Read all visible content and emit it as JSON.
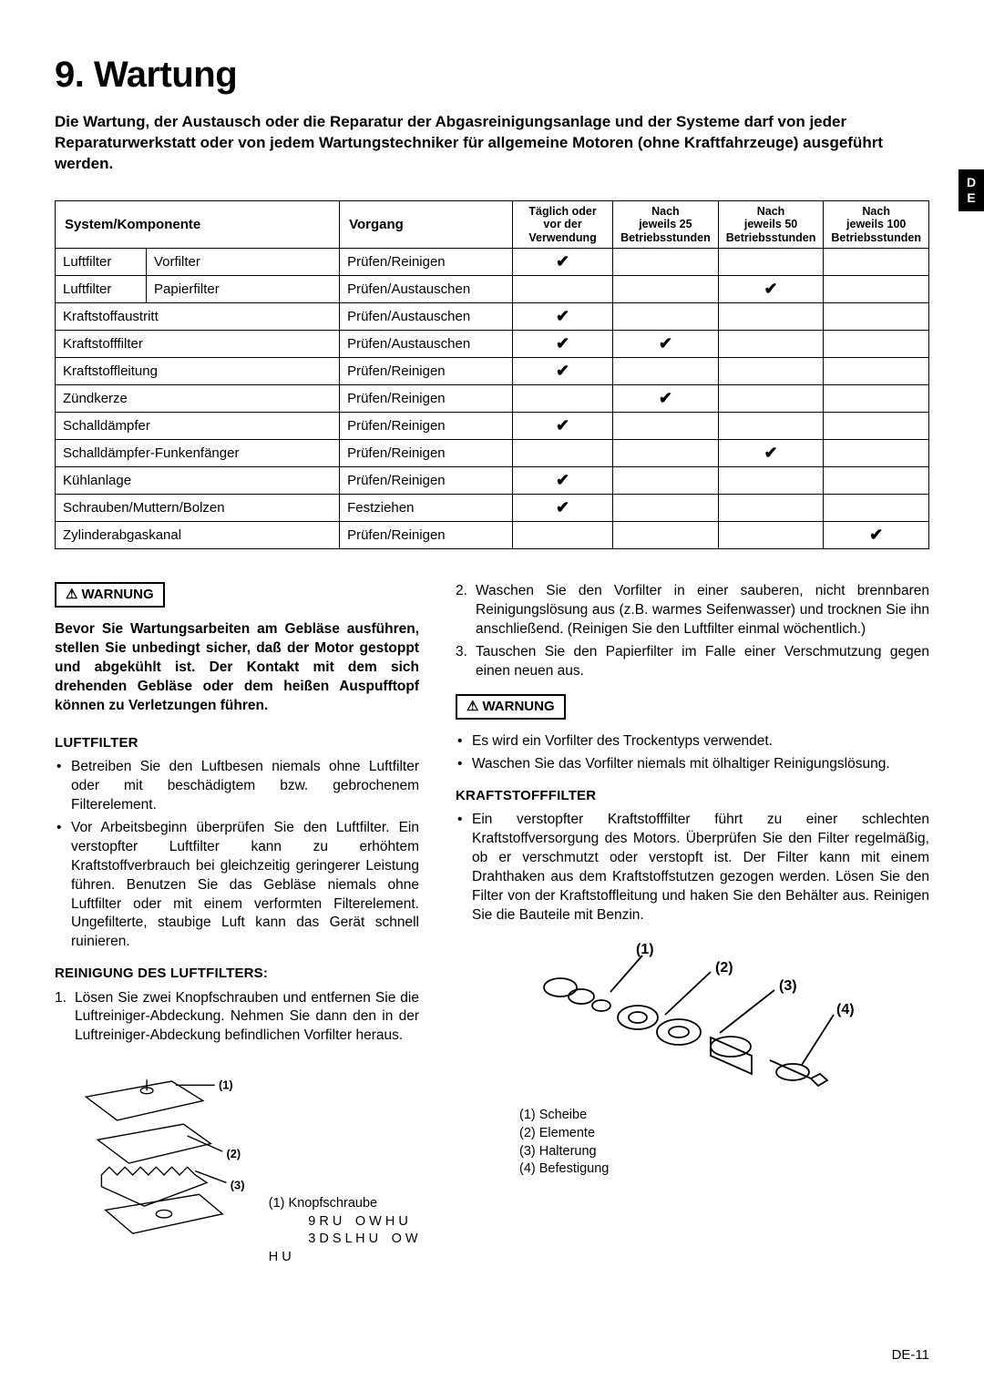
{
  "sideTab": {
    "line1": "D",
    "line2": "E"
  },
  "title": "9. Wartung",
  "intro": "Die Wartung, der Austausch oder die Reparatur der Abgasreinigungsanlage und der Systeme darf von jeder Reparaturwerkstatt oder von jedem Wartungstechniker für allgemeine Motoren (ohne Kraftfahrzeuge) ausgeführt werden.",
  "table": {
    "headers": {
      "syscomp": "System/Komponente",
      "vorgang": "Vorgang",
      "c1a": "Täglich oder",
      "c1b": "vor der",
      "c1c": "Verwendung",
      "c2a": "Nach",
      "c2b": "jeweils 25",
      "c2c": "Betriebsstunden",
      "c3a": "Nach",
      "c3b": "jeweils 50",
      "c3c": "Betriebsstunden",
      "c4a": "Nach",
      "c4b": "jeweils 100",
      "c4c": "Betriebsstunden"
    },
    "rows": [
      {
        "sys": "Luftfilter",
        "comp": "Vorfilter",
        "op": "Prüfen/Reinigen",
        "c": [
          true,
          false,
          false,
          false
        ]
      },
      {
        "sys": "Luftfilter",
        "comp": "Papierfilter",
        "op": "Prüfen/Austauschen",
        "c": [
          false,
          false,
          true,
          false
        ]
      },
      {
        "sys": "Kraftstoffaustritt",
        "comp": "",
        "op": "Prüfen/Austauschen",
        "c": [
          true,
          false,
          false,
          false
        ],
        "span": true
      },
      {
        "sys": "Kraftstofffilter",
        "comp": "",
        "op": "Prüfen/Austauschen",
        "c": [
          true,
          true,
          false,
          false
        ],
        "span": true
      },
      {
        "sys": "Kraftstoffleitung",
        "comp": "",
        "op": "Prüfen/Reinigen",
        "c": [
          true,
          false,
          false,
          false
        ],
        "span": true
      },
      {
        "sys": "Zündkerze",
        "comp": "",
        "op": "Prüfen/Reinigen",
        "c": [
          false,
          true,
          false,
          false
        ],
        "span": true
      },
      {
        "sys": "Schalldämpfer",
        "comp": "",
        "op": "Prüfen/Reinigen",
        "c": [
          true,
          false,
          false,
          false
        ],
        "span": true
      },
      {
        "sys": "Schalldämpfer-Funkenfänger",
        "comp": "",
        "op": "Prüfen/Reinigen",
        "c": [
          false,
          false,
          true,
          false
        ],
        "span": true
      },
      {
        "sys": "Kühlanlage",
        "comp": "",
        "op": "Prüfen/Reinigen",
        "c": [
          true,
          false,
          false,
          false
        ],
        "span": true
      },
      {
        "sys": "Schrauben/Muttern/Bolzen",
        "comp": "",
        "op": "Festziehen",
        "c": [
          true,
          false,
          false,
          false
        ],
        "span": true
      },
      {
        "sys": "Zylinderabgaskanal",
        "comp": "",
        "op": "Prüfen/Reinigen",
        "c": [
          false,
          false,
          false,
          true
        ],
        "span": true
      }
    ],
    "check": "✔"
  },
  "warnLabel": "WARNUNG",
  "left": {
    "warnText": "Bevor Sie Wartungsarbeiten am Gebläse ausführen, stellen Sie unbedingt sicher, daß der Motor gestoppt und abgekühlt ist. Der Kontakt mit dem sich drehenden Gebläse oder dem heißen Auspufftopf können zu Verletzungen führen.",
    "h1": "LUFTFILTER",
    "b1": "Betreiben Sie den Luftbesen niemals ohne Luftfilter oder mit beschädigtem bzw. gebrochenem Filterelement.",
    "b2": "Vor Arbeitsbeginn überprüfen Sie den Luftfilter. Ein verstopfter Luftfilter kann zu erhöhtem Kraftstoffverbrauch bei gleichzeitig geringerer Leistung führen. Benutzen Sie das Gebläse niemals ohne Luftfilter oder mit einem verformten Filterelement. Ungefilterte, staubige Luft kann das Gerät schnell ruinieren.",
    "h2": "REINIGUNG DES LUFTFILTERS:",
    "o1": "Lösen Sie zwei Knopfschrauben und entfernen Sie die Luftreiniger-Abdeckung. Nehmen Sie dann den in der Luftreiniger-Abdeckung befindlichen Vorfilter heraus.",
    "fig": {
      "l1": "(1)",
      "l2": "(2)",
      "l3": "(3)",
      "leg1": "(1) Knopfschraube",
      "leg2": "   9 R U O W H U",
      "leg3": "   3 D S L H U O W H U"
    }
  },
  "right": {
    "o2": "Waschen Sie den Vorfilter in einer sauberen, nicht brennbaren Reinigungslösung aus (z.B. warmes Seifenwasser) und trocknen Sie ihn anschließend. (Reinigen Sie den Luftfilter einmal wöchentlich.)",
    "o3": "Tauschen Sie den Papierfilter im Falle einer Verschmutzung gegen einen neuen aus.",
    "wb1": "Es wird ein Vorfilter des Trockentyps verwendet.",
    "wb2": "Waschen Sie das Vorfilter niemals mit ölhaltiger Reinigungslösung.",
    "h3": "KRAFTSTOFFFILTER",
    "p1": "Ein verstopfter Kraftstofffilter führt zu einer schlechten Kraftstoffversorgung des Motors. Überprüfen Sie den Filter regelmäßig, ob er verschmutzt oder verstopft ist. Der Filter kann mit einem Drahthaken aus dem Kraftstoffstutzen gezogen werden. Lösen Sie den Filter von der Kraftstoffleitung und haken Sie den Behälter aus. Reinigen Sie die Bauteile mit Benzin.",
    "fig": {
      "l1": "(1)",
      "l2": "(2)",
      "l3": "(3)",
      "l4": "(4)",
      "leg1": "(1) Scheibe",
      "leg2": "(2) Elemente",
      "leg3": "(3) Halterung",
      "leg4": "(4) Befestigung"
    }
  },
  "pageNum": "DE-11"
}
